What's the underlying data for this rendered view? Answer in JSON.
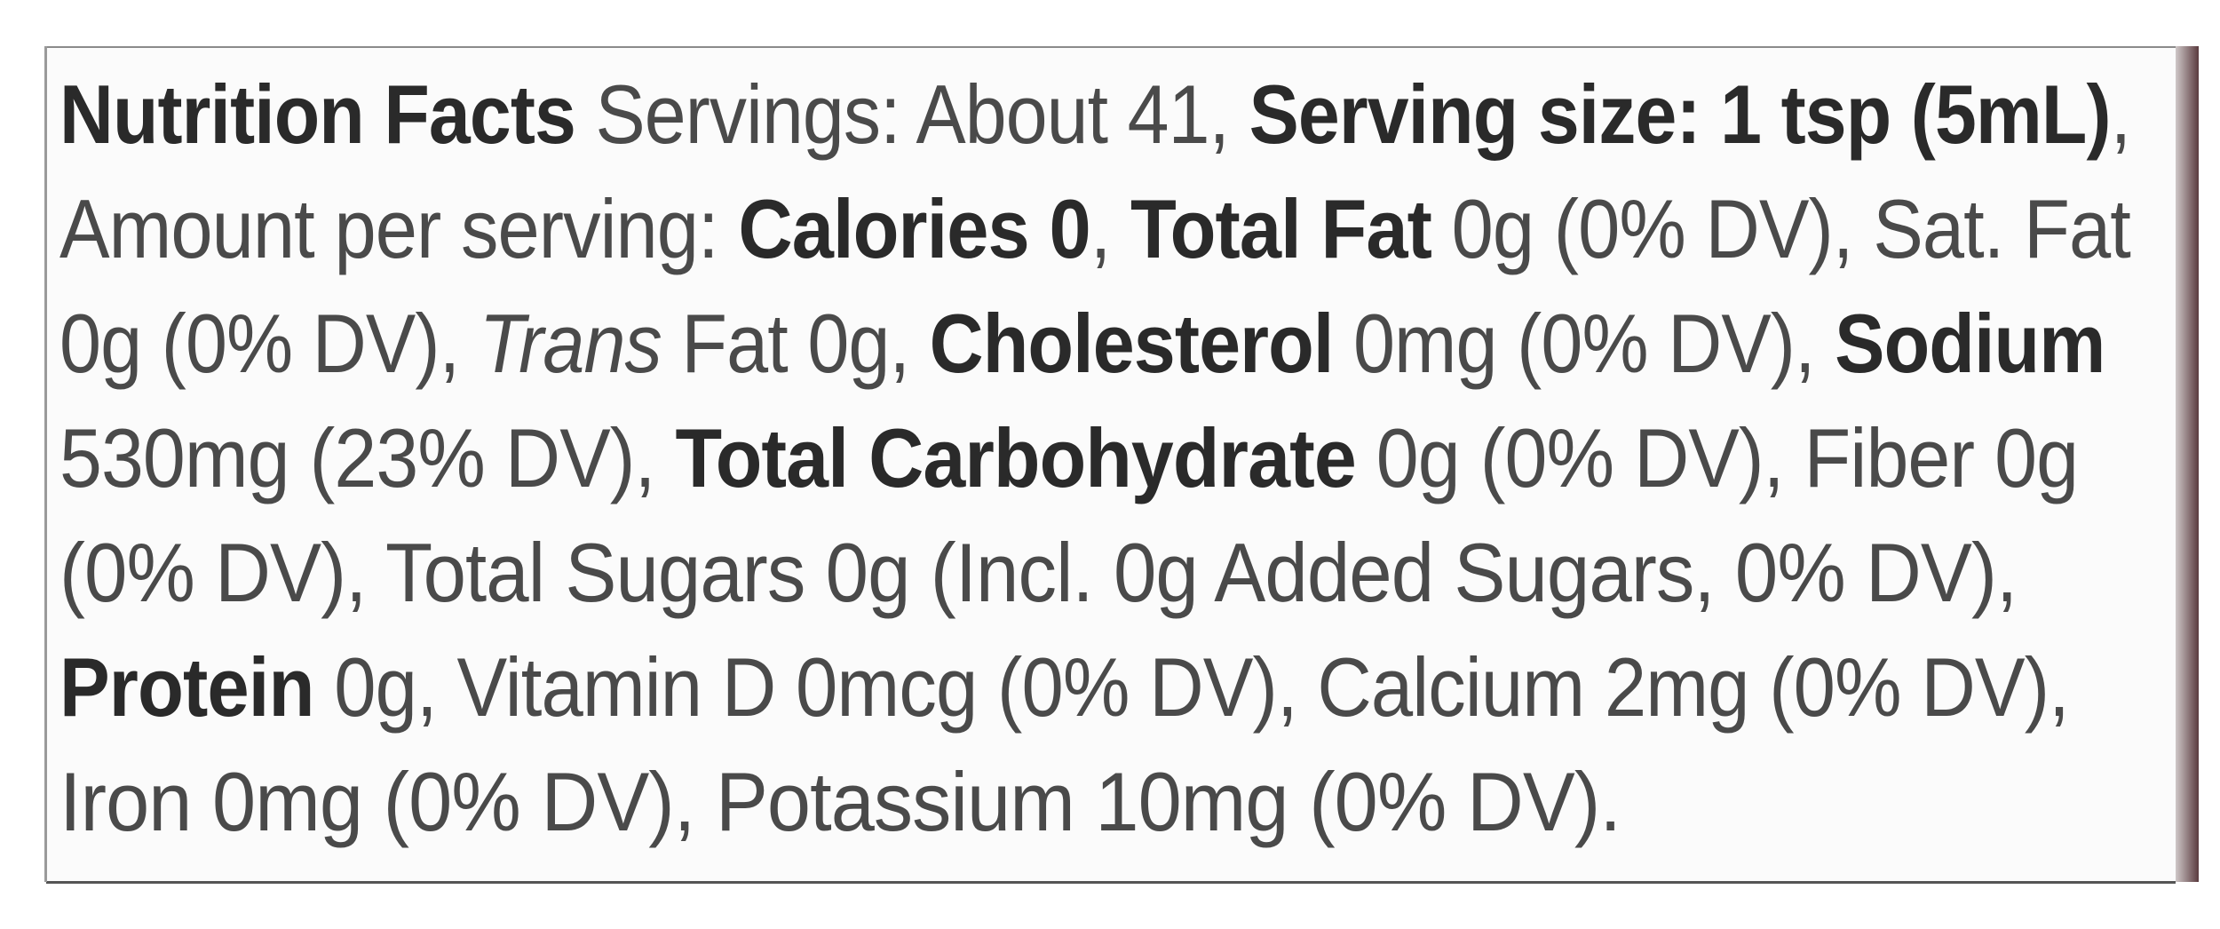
{
  "label": {
    "lines": [
      [
        {
          "t": "Nutrition Facts",
          "s": "b"
        },
        {
          "t": " Servings: About 41, ",
          "s": "r"
        },
        {
          "t": "Serving size: 1 tsp (5mL)",
          "s": "b"
        },
        {
          "t": ",",
          "s": "r"
        }
      ],
      [
        {
          "t": "Amount per serving: ",
          "s": "r"
        },
        {
          "t": "Calories 0",
          "s": "b"
        },
        {
          "t": ", ",
          "s": "r"
        },
        {
          "t": "Total Fat",
          "s": "b"
        },
        {
          "t": " 0g (0% DV), Sat. Fat",
          "s": "r"
        }
      ],
      [
        {
          "t": "0g (0% DV), ",
          "s": "r"
        },
        {
          "t": "Trans",
          "s": "i"
        },
        {
          "t": " Fat 0g, ",
          "s": "r"
        },
        {
          "t": "Cholesterol",
          "s": "b"
        },
        {
          "t": " 0mg (0% DV), ",
          "s": "r"
        },
        {
          "t": "Sodium",
          "s": "b"
        }
      ],
      [
        {
          "t": "530mg (23% DV), ",
          "s": "r"
        },
        {
          "t": "Total Carbohydrate",
          "s": "b"
        },
        {
          "t": " 0g (0% DV), Fiber 0g",
          "s": "r"
        }
      ],
      [
        {
          "t": "(0% DV), Total Sugars 0g (Incl. 0g Added Sugars, 0% DV),",
          "s": "r"
        }
      ],
      [
        {
          "t": "Protein",
          "s": "b"
        },
        {
          "t": " 0g, Vitamin D 0mcg (0% DV), Calcium 2mg (0% DV),",
          "s": "r"
        }
      ],
      [
        {
          "t": "Iron 0mg (0% DV), Potassium 10mg (0% DV).",
          "s": "r"
        }
      ]
    ]
  }
}
